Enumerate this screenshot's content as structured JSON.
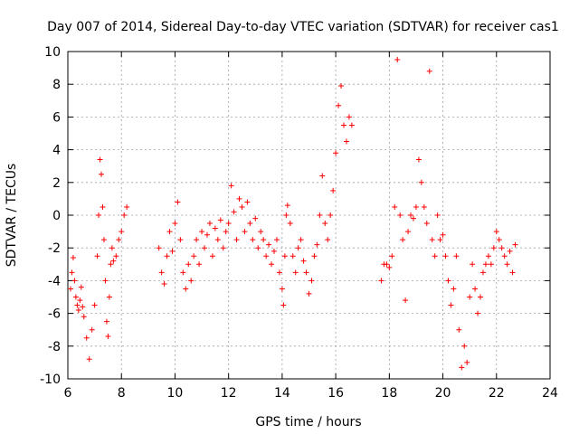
{
  "chart_data": {
    "type": "scatter",
    "title": "Day 007 of 2014, Sidereal Day-to-day VTEC variation (SDTVAR) for receiver cas1",
    "xlabel": "GPS time / hours",
    "ylabel": "SDTVAR / TECUs",
    "xlim": [
      6,
      24
    ],
    "ylim": [
      -10,
      10
    ],
    "xticks": [
      6,
      8,
      10,
      12,
      14,
      16,
      18,
      20,
      22,
      24
    ],
    "yticks": [
      -10,
      -8,
      -6,
      -4,
      -2,
      0,
      2,
      4,
      6,
      8,
      10
    ],
    "grid": true,
    "marker": "plus",
    "color": "#ff0000",
    "segments": [
      {
        "x": [
          6.1,
          6.15,
          6.2,
          6.25,
          6.3,
          6.35,
          6.4,
          6.45,
          6.5,
          6.55,
          6.6,
          6.7,
          6.8,
          6.9,
          7.0,
          7.1,
          7.15,
          7.2,
          7.25,
          7.3,
          7.35,
          7.4,
          7.45,
          7.5,
          7.55,
          7.6,
          7.65,
          7.7,
          7.8,
          7.9,
          8.0,
          8.1,
          8.2
        ],
        "y": [
          -4.5,
          -3.5,
          -2.6,
          -4.0,
          -5.0,
          -5.5,
          -5.8,
          -5.2,
          -4.4,
          -5.6,
          -6.2,
          -7.5,
          -8.8,
          -7.0,
          -5.5,
          -2.5,
          0.0,
          3.4,
          2.5,
          0.5,
          -1.5,
          -4.0,
          -6.5,
          -7.4,
          -5.0,
          -3.0,
          -2.0,
          -2.8,
          -2.5,
          -1.5,
          -1.0,
          0.0,
          0.5
        ]
      },
      {
        "x": [
          9.4,
          9.5,
          9.6,
          9.7,
          9.8,
          9.9,
          10.0,
          10.1,
          10.2,
          10.3,
          10.4,
          10.5,
          10.6,
          10.7,
          10.8,
          10.9,
          11.0,
          11.1,
          11.2,
          11.3,
          11.4,
          11.5,
          11.6,
          11.7,
          11.8,
          11.9,
          12.0,
          12.1,
          12.2,
          12.3,
          12.4,
          12.5,
          12.6,
          12.7,
          12.8,
          12.9,
          13.0,
          13.1,
          13.2,
          13.3,
          13.4,
          13.5,
          13.6,
          13.7,
          13.8,
          13.9,
          14.0,
          14.05,
          14.1,
          14.15,
          14.2,
          14.3,
          14.4,
          14.5,
          14.6,
          14.7,
          14.8,
          14.9,
          15.0,
          15.1,
          15.2,
          15.3,
          15.4,
          15.5,
          15.6,
          15.7,
          15.8,
          15.9,
          16.0,
          16.1,
          16.2,
          16.3,
          16.4,
          16.5,
          16.6
        ],
        "y": [
          -2.0,
          -3.5,
          -4.2,
          -2.5,
          -1.0,
          -2.2,
          -0.5,
          0.8,
          -1.5,
          -3.5,
          -4.5,
          -3.0,
          -4.0,
          -2.5,
          -1.5,
          -3.0,
          -1.0,
          -2.0,
          -1.2,
          -0.5,
          -2.5,
          -0.8,
          -1.5,
          -0.3,
          -2.0,
          -1.0,
          -0.5,
          1.8,
          0.2,
          -1.5,
          1.0,
          0.5,
          -1.0,
          0.8,
          -0.5,
          -1.5,
          -0.2,
          -2.0,
          -1.0,
          -1.5,
          -2.5,
          -1.8,
          -3.0,
          -2.2,
          -1.5,
          -3.5,
          -4.5,
          -5.5,
          -2.5,
          0.0,
          0.6,
          -0.5,
          -2.5,
          -3.5,
          -2.0,
          -1.5,
          -2.8,
          -3.5,
          -4.8,
          -4.0,
          -2.5,
          -1.8,
          0.0,
          2.4,
          -0.5,
          -1.5,
          0.0,
          1.5,
          3.8,
          6.7,
          7.9,
          5.5,
          4.5,
          6.0,
          5.5
        ]
      },
      {
        "x": [
          17.7,
          17.8,
          17.9,
          18.0,
          18.1,
          18.2,
          18.3,
          18.4,
          18.5,
          18.6,
          18.7,
          18.8,
          18.9,
          19.0,
          19.1,
          19.2,
          19.3,
          19.4,
          19.5,
          19.6,
          19.7,
          19.8,
          19.9,
          20.0,
          20.1,
          20.2,
          20.3,
          20.4,
          20.5,
          20.6,
          20.7,
          20.8,
          20.9,
          21.0,
          21.1,
          21.2,
          21.3,
          21.4,
          21.5,
          21.6,
          21.7,
          21.8,
          21.9,
          22.0,
          22.1,
          22.2,
          22.3,
          22.4,
          22.5,
          22.6,
          22.7
        ],
        "y": [
          -4.0,
          -3.0,
          -3.0,
          -3.2,
          -2.5,
          0.5,
          9.5,
          0.0,
          -1.5,
          -5.2,
          -1.0,
          0.0,
          -0.2,
          0.5,
          3.4,
          2.0,
          0.5,
          -0.5,
          8.8,
          -1.5,
          -2.5,
          0.0,
          -1.5,
          -1.2,
          -2.5,
          -4.0,
          -5.5,
          -4.5,
          -2.5,
          -7.0,
          -9.3,
          -8.0,
          -9.0,
          -5.0,
          -3.0,
          -4.5,
          -6.0,
          -5.0,
          -3.5,
          -3.0,
          -2.5,
          -3.0,
          -2.0,
          -1.0,
          -1.5,
          -2.0,
          -2.5,
          -3.0,
          -2.2,
          -3.5,
          -1.8
        ]
      }
    ]
  }
}
